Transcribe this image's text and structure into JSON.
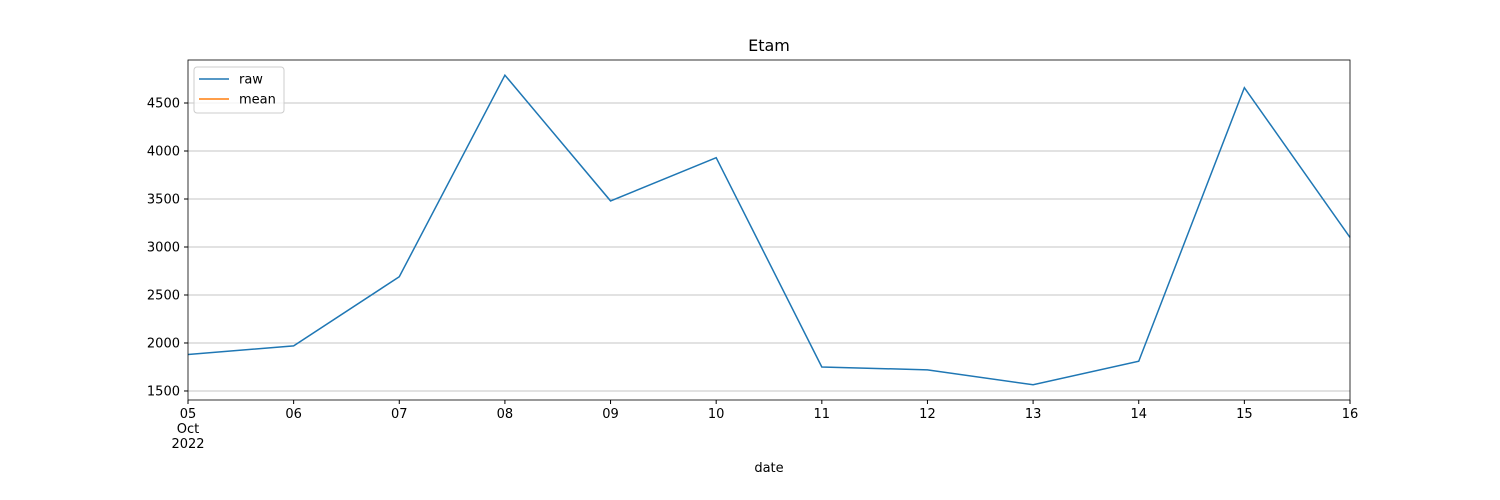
{
  "chart_data": {
    "type": "line",
    "title": "Etam",
    "xlabel": "date",
    "x": [
      "2022-10-05",
      "2022-10-06",
      "2022-10-07",
      "2022-10-08",
      "2022-10-09",
      "2022-10-10",
      "2022-10-11",
      "2022-10-12",
      "2022-10-13",
      "2022-10-14",
      "2022-10-15",
      "2022-10-16"
    ],
    "series": [
      {
        "name": "raw",
        "color": "#1f77b4",
        "values": [
          1880,
          1970,
          2690,
          4790,
          3480,
          3930,
          1750,
          1720,
          1565,
          1810,
          4660,
          3100
        ]
      },
      {
        "name": "mean",
        "color": "#ff7f0e",
        "values": [
          null,
          null,
          null,
          null,
          null,
          null,
          null,
          null,
          null,
          null,
          null,
          null
        ]
      }
    ],
    "xlim": [
      "2022-10-05",
      "2022-10-16"
    ],
    "xticks": [
      {
        "value": "2022-10-05",
        "label": "05\nOct\n2022"
      },
      {
        "value": "2022-10-06",
        "label": "06"
      },
      {
        "value": "2022-10-07",
        "label": "07"
      },
      {
        "value": "2022-10-08",
        "label": "08"
      },
      {
        "value": "2022-10-09",
        "label": "09"
      },
      {
        "value": "2022-10-10",
        "label": "10"
      },
      {
        "value": "2022-10-11",
        "label": "11"
      },
      {
        "value": "2022-10-12",
        "label": "12"
      },
      {
        "value": "2022-10-13",
        "label": "13"
      },
      {
        "value": "2022-10-14",
        "label": "14"
      },
      {
        "value": "2022-10-15",
        "label": "15"
      },
      {
        "value": "2022-10-16",
        "label": "16"
      }
    ],
    "ylim": [
      1406,
      4948
    ],
    "yticks": [
      1500,
      2000,
      2500,
      3000,
      3500,
      4000,
      4500
    ],
    "grid": "y",
    "legend": "upper left"
  }
}
